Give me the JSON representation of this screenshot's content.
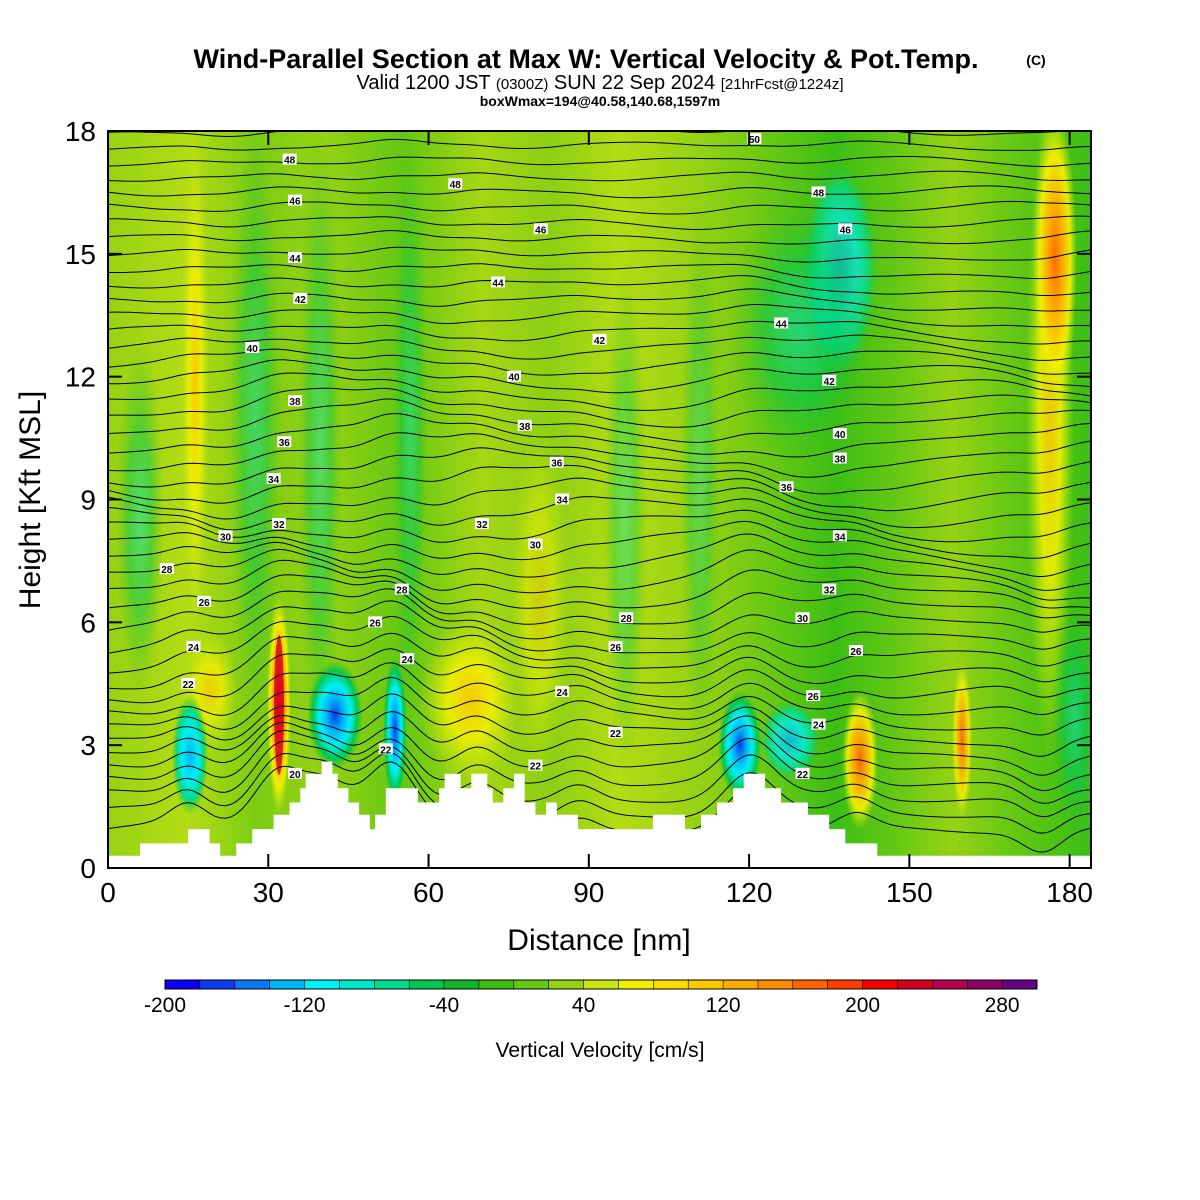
{
  "header": {
    "title": "Wind-Parallel Section at Max W: Vertical Velocity & Pot.Temp.",
    "title_mark": "(C)",
    "valid_prefix": "Valid 1200 JST",
    "valid_utc": "(0300Z)",
    "valid_suffix": "SUN 22 Sep 2024",
    "forecast": "[21hrFcst@1224z]",
    "boxwmax": "boxWmax=194@40.58,140.68,1597m"
  },
  "chart_data": {
    "type": "heatmap",
    "title": "Wind-Parallel Section at Max W: Vertical Velocity & Pot.Temp.",
    "xlabel": "Distance [nm]",
    "ylabel": "Height [Kft MSL]",
    "xlim": [
      0,
      184
    ],
    "ylim": [
      0,
      18
    ],
    "x_ticks": [
      "0",
      "30",
      "60",
      "90",
      "120",
      "150",
      "180"
    ],
    "y_ticks": [
      "0",
      "3",
      "6",
      "9",
      "12",
      "15",
      "18"
    ],
    "colorbar": {
      "label": "Vertical Velocity [cm/s]",
      "tick_labels": [
        "-200",
        "-120",
        "-40",
        "40",
        "120",
        "200",
        "280"
      ],
      "levels": [
        -200,
        -180,
        -160,
        -140,
        -120,
        -100,
        -80,
        -60,
        -40,
        -20,
        0,
        20,
        40,
        60,
        80,
        100,
        120,
        140,
        160,
        180,
        200,
        220,
        240,
        260,
        280
      ],
      "colors": [
        "#0a00f5",
        "#0a3cf5",
        "#0a78f5",
        "#00b4f5",
        "#00f0f5",
        "#00e6c8",
        "#00dc8c",
        "#00c850",
        "#14b428",
        "#3cbe14",
        "#64c814",
        "#96d214",
        "#c8e614",
        "#f0f000",
        "#ffdc00",
        "#ffc800",
        "#ffaa00",
        "#ff8c00",
        "#ff6400",
        "#ff3c00",
        "#f50000",
        "#d2001e",
        "#b40050",
        "#8c0064",
        "#640082"
      ]
    },
    "contour_labels": [
      {
        "x": 34,
        "y": 17.3,
        "text": "48"
      },
      {
        "x": 65,
        "y": 16.7,
        "text": "48"
      },
      {
        "x": 121,
        "y": 17.8,
        "text": "50"
      },
      {
        "x": 133,
        "y": 16.5,
        "text": "48"
      },
      {
        "x": 35,
        "y": 16.3,
        "text": "46"
      },
      {
        "x": 81,
        "y": 15.6,
        "text": "46"
      },
      {
        "x": 138,
        "y": 15.6,
        "text": "46"
      },
      {
        "x": 35,
        "y": 14.9,
        "text": "44"
      },
      {
        "x": 73,
        "y": 14.3,
        "text": "44"
      },
      {
        "x": 126,
        "y": 13.3,
        "text": "44"
      },
      {
        "x": 36,
        "y": 13.9,
        "text": "42"
      },
      {
        "x": 92,
        "y": 12.9,
        "text": "42"
      },
      {
        "x": 135,
        "y": 11.9,
        "text": "42"
      },
      {
        "x": 27,
        "y": 12.7,
        "text": "40"
      },
      {
        "x": 76,
        "y": 12.0,
        "text": "40"
      },
      {
        "x": 137,
        "y": 10.6,
        "text": "40"
      },
      {
        "x": 35,
        "y": 11.4,
        "text": "38"
      },
      {
        "x": 78,
        "y": 10.8,
        "text": "38"
      },
      {
        "x": 137,
        "y": 10.0,
        "text": "38"
      },
      {
        "x": 33,
        "y": 10.4,
        "text": "36"
      },
      {
        "x": 84,
        "y": 9.9,
        "text": "36"
      },
      {
        "x": 127,
        "y": 9.3,
        "text": "36"
      },
      {
        "x": 31,
        "y": 9.5,
        "text": "34"
      },
      {
        "x": 85,
        "y": 9.0,
        "text": "34"
      },
      {
        "x": 137,
        "y": 8.1,
        "text": "34"
      },
      {
        "x": 32,
        "y": 8.4,
        "text": "32"
      },
      {
        "x": 70,
        "y": 8.4,
        "text": "32"
      },
      {
        "x": 135,
        "y": 6.8,
        "text": "32"
      },
      {
        "x": 22,
        "y": 8.1,
        "text": "30"
      },
      {
        "x": 80,
        "y": 7.9,
        "text": "30"
      },
      {
        "x": 130,
        "y": 6.1,
        "text": "30"
      },
      {
        "x": 11,
        "y": 7.3,
        "text": "28"
      },
      {
        "x": 55,
        "y": 6.8,
        "text": "28"
      },
      {
        "x": 97,
        "y": 6.1,
        "text": "28"
      },
      {
        "x": 18,
        "y": 6.5,
        "text": "26"
      },
      {
        "x": 50,
        "y": 6.0,
        "text": "26"
      },
      {
        "x": 95,
        "y": 5.4,
        "text": "26"
      },
      {
        "x": 140,
        "y": 5.3,
        "text": "26"
      },
      {
        "x": 16,
        "y": 5.4,
        "text": "24"
      },
      {
        "x": 56,
        "y": 5.1,
        "text": "24"
      },
      {
        "x": 85,
        "y": 4.3,
        "text": "24"
      },
      {
        "x": 132,
        "y": 4.2,
        "text": "26"
      },
      {
        "x": 15,
        "y": 4.5,
        "text": "22"
      },
      {
        "x": 52,
        "y": 2.9,
        "text": "22"
      },
      {
        "x": 95,
        "y": 3.3,
        "text": "22"
      },
      {
        "x": 133,
        "y": 3.5,
        "text": "24"
      },
      {
        "x": 35,
        "y": 2.3,
        "text": "20"
      },
      {
        "x": 80,
        "y": 2.5,
        "text": "22"
      },
      {
        "x": 130,
        "y": 2.3,
        "text": "22"
      }
    ]
  }
}
